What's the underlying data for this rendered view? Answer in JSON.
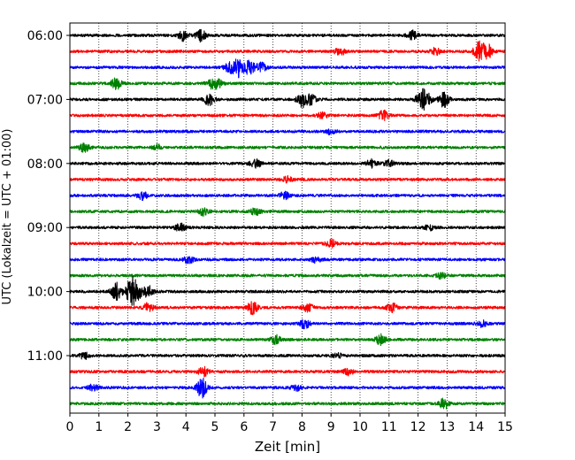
{
  "chart_data": {
    "type": "line",
    "title": "",
    "xlabel": "Zeit  [min]",
    "ylabel": "UTC (Lokalzeit = UTC + 01:00)",
    "xlim": [
      0,
      15
    ],
    "x_ticks": [
      "0",
      "1",
      "2",
      "3",
      "4",
      "5",
      "6",
      "7",
      "8",
      "9",
      "10",
      "11",
      "12",
      "13",
      "14",
      "15"
    ],
    "y_tick_labels": [
      "06:00",
      "07:00",
      "08:00",
      "09:00",
      "10:00",
      "11:00"
    ],
    "trace_interval_minutes": 15,
    "trace_colors": [
      "#000000",
      "#ff0000",
      "#0000ff",
      "#008000"
    ],
    "grid": "vertical dotted",
    "series": [
      {
        "start": "06:00",
        "events": [
          [
            3.9,
            1.8
          ],
          [
            4.5,
            2.2
          ],
          [
            11.8,
            1.6
          ]
        ]
      },
      {
        "start": "06:15",
        "events": [
          [
            9.3,
            1.5
          ],
          [
            12.6,
            1.2
          ],
          [
            14.1,
            3.4
          ],
          [
            14.4,
            2.6
          ]
        ]
      },
      {
        "start": "06:30",
        "events": [
          [
            5.5,
            1.8
          ],
          [
            5.8,
            3.5
          ],
          [
            6.2,
            2.8
          ],
          [
            6.6,
            1.6
          ]
        ]
      },
      {
        "start": "06:45",
        "events": [
          [
            1.6,
            2.0
          ],
          [
            4.9,
            1.6
          ],
          [
            5.1,
            1.3
          ]
        ]
      },
      {
        "start": "07:00",
        "events": [
          [
            4.8,
            2.2
          ],
          [
            8.0,
            2.8
          ],
          [
            8.3,
            1.8
          ],
          [
            12.1,
            2.9
          ],
          [
            12.3,
            2.4
          ],
          [
            12.9,
            3.0
          ]
        ]
      },
      {
        "start": "07:15",
        "events": [
          [
            8.7,
            1.3
          ],
          [
            10.8,
            1.7
          ]
        ]
      },
      {
        "start": "07:30",
        "events": [
          [
            9.0,
            1.0
          ]
        ]
      },
      {
        "start": "07:45",
        "events": [
          [
            0.5,
            1.5
          ],
          [
            3.0,
            1.0
          ]
        ]
      },
      {
        "start": "08:00",
        "events": [
          [
            6.4,
            2.0
          ],
          [
            10.4,
            1.4
          ],
          [
            11.0,
            1.2
          ]
        ]
      },
      {
        "start": "08:15",
        "events": [
          [
            7.5,
            1.0
          ]
        ]
      },
      {
        "start": "08:30",
        "events": [
          [
            2.5,
            1.4
          ],
          [
            7.4,
            1.2
          ]
        ]
      },
      {
        "start": "08:45",
        "events": [
          [
            4.6,
            1.5
          ],
          [
            6.4,
            1.2
          ]
        ]
      },
      {
        "start": "09:00",
        "events": [
          [
            3.8,
            1.4
          ],
          [
            12.4,
            1.0
          ]
        ]
      },
      {
        "start": "09:15",
        "events": [
          [
            9.0,
            1.4
          ]
        ]
      },
      {
        "start": "09:30",
        "events": [
          [
            4.1,
            1.3
          ],
          [
            8.5,
            1.2
          ]
        ]
      },
      {
        "start": "09:45",
        "events": [
          [
            12.8,
            1.0
          ]
        ]
      },
      {
        "start": "10:00",
        "events": [
          [
            1.6,
            3.2
          ],
          [
            2.1,
            4.5
          ],
          [
            2.3,
            3.0
          ],
          [
            2.7,
            2.0
          ]
        ]
      },
      {
        "start": "10:15",
        "events": [
          [
            2.7,
            1.6
          ],
          [
            6.3,
            2.4
          ],
          [
            8.2,
            1.4
          ],
          [
            11.1,
            1.6
          ]
        ]
      },
      {
        "start": "10:30",
        "events": [
          [
            8.1,
            1.6
          ],
          [
            14.2,
            1.2
          ]
        ]
      },
      {
        "start": "10:45",
        "events": [
          [
            7.1,
            1.6
          ],
          [
            10.7,
            2.0
          ]
        ]
      },
      {
        "start": "11:00",
        "events": [
          [
            0.5,
            1.2
          ],
          [
            9.2,
            1.0
          ]
        ]
      },
      {
        "start": "11:15",
        "events": [
          [
            4.6,
            1.6
          ],
          [
            9.6,
            1.2
          ]
        ]
      },
      {
        "start": "11:30",
        "events": [
          [
            0.8,
            1.2
          ],
          [
            4.55,
            3.6
          ],
          [
            7.8,
            1.0
          ]
        ]
      },
      {
        "start": "11:45",
        "events": [
          [
            12.9,
            1.8
          ]
        ]
      }
    ]
  }
}
